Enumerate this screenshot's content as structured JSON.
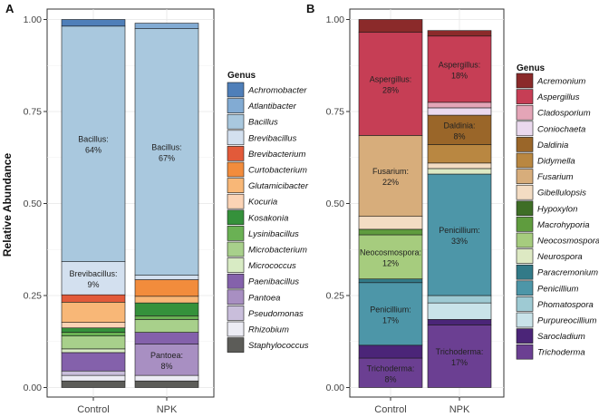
{
  "ylabel": "Relative Abundance",
  "chart_data": [
    {
      "panel": "A",
      "type": "bar",
      "stacked": true,
      "categories": [
        "Control",
        "NPK"
      ],
      "ylim": [
        0,
        1
      ],
      "yticks": [
        "0.00",
        "0.25",
        "0.50",
        "0.75",
        "1.00"
      ],
      "ylabel": "Relative Abundance",
      "legend_title": "Genus",
      "legend_position": "right",
      "series": [
        {
          "name": "Staphylococcus",
          "color": "#5c5c58",
          "values": [
            0.018,
            0.018
          ]
        },
        {
          "name": "Rhizobium",
          "color": "#ececf4",
          "values": [
            0.015,
            0.015
          ]
        },
        {
          "name": "Pseudomonas",
          "color": "#c9bedb",
          "values": [
            0.012,
            0.0
          ]
        },
        {
          "name": "Pantoea",
          "color": "#a88fc2",
          "values": [
            0.0,
            0.085
          ]
        },
        {
          "name": "Paenibacillus",
          "color": "#8461ab",
          "values": [
            0.05,
            0.032
          ]
        },
        {
          "name": "Micrococcus",
          "color": "#d8ebc4",
          "values": [
            0.01,
            0.0
          ]
        },
        {
          "name": "Microbacterium",
          "color": "#a8d08b",
          "values": [
            0.035,
            0.035
          ]
        },
        {
          "name": "Lysinibacillus",
          "color": "#6ab154",
          "values": [
            0.01,
            0.01
          ]
        },
        {
          "name": "Kosakonia",
          "color": "#35913b",
          "values": [
            0.012,
            0.035
          ]
        },
        {
          "name": "Kocuria",
          "color": "#fbd3b5",
          "values": [
            0.015,
            0.0
          ]
        },
        {
          "name": "Glutamicibacter",
          "color": "#f8b777",
          "values": [
            0.055,
            0.018
          ]
        },
        {
          "name": "Curtobacterium",
          "color": "#f28c3c",
          "values": [
            0.0,
            0.045
          ]
        },
        {
          "name": "Brevibacterium",
          "color": "#e25a3a",
          "values": [
            0.02,
            0.0
          ]
        },
        {
          "name": "Brevibacillus",
          "color": "#d3e0ef",
          "values": [
            0.09,
            0.012
          ]
        },
        {
          "name": "Bacillus",
          "color": "#a9c8de",
          "values": [
            0.64,
            0.67
          ]
        },
        {
          "name": "Atlantibacter",
          "color": "#82abd3",
          "values": [
            0.0,
            0.015
          ]
        },
        {
          "name": "Achromobacter",
          "color": "#4f7fb9",
          "values": [
            0.018,
            0.0
          ]
        }
      ],
      "labels": [
        {
          "category": "Control",
          "genus": "Bacillus",
          "text": "Bacillus:\n64%"
        },
        {
          "category": "Control",
          "genus": "Brevibacillus",
          "text": "Brevibacillus:\n9%"
        },
        {
          "category": "NPK",
          "genus": "Bacillus",
          "text": "Bacillus:\n67%"
        },
        {
          "category": "NPK",
          "genus": "Pantoea",
          "text": "Pantoea:\n8%"
        }
      ]
    },
    {
      "panel": "B",
      "type": "bar",
      "stacked": true,
      "categories": [
        "Control",
        "NPK"
      ],
      "ylim": [
        0,
        1
      ],
      "yticks": [
        "0.00",
        "0.25",
        "0.50",
        "0.75",
        "1.00"
      ],
      "ylabel": "",
      "legend_title": "Genus",
      "legend_position": "right",
      "series": [
        {
          "name": "Trichoderma",
          "color": "#6b3f92",
          "values": [
            0.08,
            0.17
          ]
        },
        {
          "name": "Sarocladium",
          "color": "#4b2578",
          "values": [
            0.035,
            0.015
          ]
        },
        {
          "name": "Purpureocillium",
          "color": "#c9e3e9",
          "values": [
            0.0,
            0.045
          ]
        },
        {
          "name": "Phomatospora",
          "color": "#9ecad3",
          "values": [
            0.0,
            0.02
          ]
        },
        {
          "name": "Penicillium",
          "color": "#4d96a8",
          "values": [
            0.17,
            0.33
          ]
        },
        {
          "name": "Paracremonium",
          "color": "#327a88",
          "values": [
            0.01,
            0.0
          ]
        },
        {
          "name": "Neurospora",
          "color": "#dde9c3",
          "values": [
            0.0,
            0.015
          ]
        },
        {
          "name": "Neocosmospora",
          "color": "#a6cc7e",
          "values": [
            0.12,
            0.0
          ]
        },
        {
          "name": "Macrohyporia",
          "color": "#5f9c3e",
          "values": [
            0.015,
            0.0
          ]
        },
        {
          "name": "Hypoxylon",
          "color": "#3e6e26",
          "values": [
            0.0,
            0.0
          ]
        },
        {
          "name": "Gibellulopsis",
          "color": "#f3dcc3",
          "values": [
            0.035,
            0.015
          ]
        },
        {
          "name": "Fusarium",
          "color": "#d7ad7b",
          "values": [
            0.22,
            0.0
          ]
        },
        {
          "name": "Didymella",
          "color": "#b98741",
          "values": [
            0.0,
            0.05
          ]
        },
        {
          "name": "Daldinia",
          "color": "#9a6629",
          "values": [
            0.0,
            0.08
          ]
        },
        {
          "name": "Coniochaeta",
          "color": "#ead9ee",
          "values": [
            0.0,
            0.02
          ]
        },
        {
          "name": "Cladosporium",
          "color": "#e4a5b7",
          "values": [
            0.0,
            0.015
          ]
        },
        {
          "name": "Aspergillus",
          "color": "#c63e55",
          "values": [
            0.28,
            0.18
          ]
        },
        {
          "name": "Acremonium",
          "color": "#8b2a2a",
          "values": [
            0.035,
            0.015
          ]
        }
      ],
      "labels": [
        {
          "category": "Control",
          "genus": "Aspergillus",
          "text": "Aspergillus:\n28%"
        },
        {
          "category": "Control",
          "genus": "Fusarium",
          "text": "Fusarium:\n22%"
        },
        {
          "category": "Control",
          "genus": "Neocosmospora",
          "text": "Neocosmospora:\n12%"
        },
        {
          "category": "Control",
          "genus": "Penicillium",
          "text": "Penicillium:\n17%"
        },
        {
          "category": "Control",
          "genus": "Trichoderma",
          "text": "Trichoderma:\n8%"
        },
        {
          "category": "NPK",
          "genus": "Aspergillus",
          "text": "Aspergillus:\n18%"
        },
        {
          "category": "NPK",
          "genus": "Daldinia",
          "text": "Daldinia:\n8%"
        },
        {
          "category": "NPK",
          "genus": "Penicillium",
          "text": "Penicillium:\n33%"
        },
        {
          "category": "NPK",
          "genus": "Trichoderma",
          "text": "Trichoderma:\n17%"
        }
      ]
    }
  ]
}
